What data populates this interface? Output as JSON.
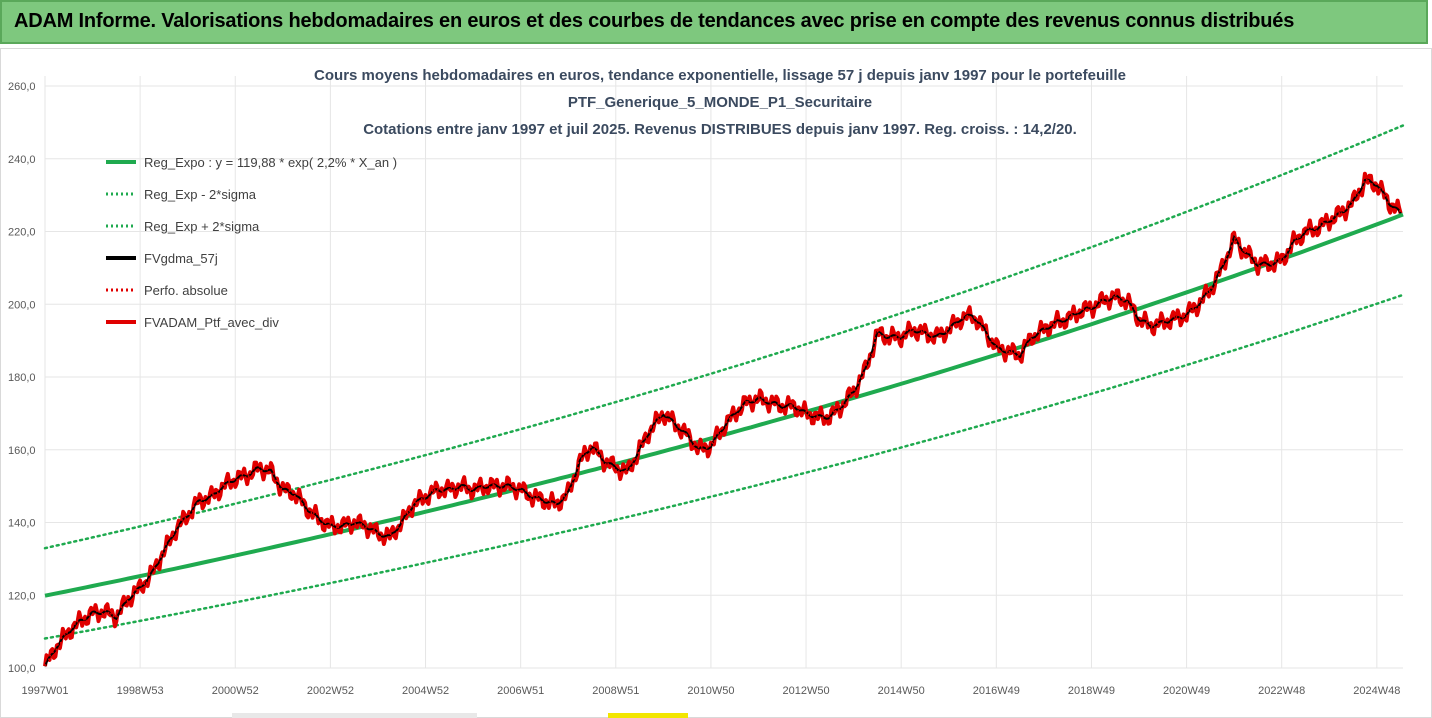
{
  "header": {
    "title": "ADAM Informe. Valorisations hebdomadaires en euros et des courbes de tendances avec prise en compte des revenus connus distribués"
  },
  "colors": {
    "header_bg": "#7ec87e",
    "trend": "#1faa4f",
    "sigma": "#1faa4f",
    "smoothed": "#000000",
    "perfo": "#e00000",
    "portfolio": "#e00000",
    "grid": "#e6e6e6"
  },
  "chart_data": {
    "type": "line",
    "title_lines": [
      "Cours moyens hebdomadaires en euros, tendance exponentielle, lissage 57 j depuis janv 1997 pour le portefeuille",
      "PTF_Generique_5_MONDE_P1_Securitaire",
      "Cotations entre janv 1997 et juil 2025. Revenus DISTRIBUES depuis janv 1997. Reg. croiss. : 14,2/20."
    ],
    "xlabel": "",
    "ylabel": "",
    "ylim": [
      100,
      260
    ],
    "xlim": [
      1997.0,
      2025.55
    ],
    "yticks": [
      100,
      120,
      140,
      160,
      180,
      200,
      220,
      240,
      260
    ],
    "ytick_labels": [
      "100,0",
      "120,0",
      "140,0",
      "160,0",
      "180,0",
      "200,0",
      "220,0",
      "240,0",
      "260,0"
    ],
    "xtick_labels": [
      "1997W01",
      "1998W53",
      "2000W52",
      "2002W52",
      "2004W52",
      "2006W51",
      "2008W51",
      "2010W50",
      "2012W50",
      "2014W50",
      "2016W49",
      "2018W49",
      "2020W49",
      "2022W48",
      "2024W48"
    ],
    "xtick_positions": [
      1997.0,
      1999.0,
      2001.0,
      2003.0,
      2005.0,
      2007.0,
      2009.0,
      2011.0,
      2013.0,
      2015.0,
      2017.0,
      2019.0,
      2021.0,
      2023.0,
      2025.0
    ],
    "grid": true,
    "legend_position": "top-left",
    "trend_model": {
      "a": 119.88,
      "rate": 0.022,
      "sigma_factor": 1.109
    },
    "series": [
      {
        "name": "Reg_Expo : y = 119,88 * exp( 2,2% *  X_an )",
        "style": "solid",
        "color": "#1faa4f",
        "kind": "trend"
      },
      {
        "name": "Reg_Exp - 2*sigma",
        "style": "dotted",
        "color": "#1faa4f",
        "kind": "lower"
      },
      {
        "name": "Reg_Exp + 2*sigma",
        "style": "dotted",
        "color": "#1faa4f",
        "kind": "upper"
      },
      {
        "name": "FVgdma_57j",
        "style": "solid",
        "color": "#000000",
        "kind": "smoothed"
      },
      {
        "name": "Perfo. absolue",
        "style": "dotted",
        "color": "#e00000",
        "kind": "perfo"
      },
      {
        "name": "FVADAM_Ptf_avec_div",
        "style": "solid",
        "color": "#e00000",
        "kind": "portfolio"
      }
    ],
    "x": [
      1997.0,
      1997.25,
      1997.5,
      1997.75,
      1998.0,
      1998.25,
      1998.5,
      1998.75,
      1999.0,
      1999.25,
      1999.5,
      1999.75,
      2000.0,
      2000.25,
      2000.5,
      2000.75,
      2001.0,
      2001.25,
      2001.5,
      2001.75,
      2002.0,
      2002.25,
      2002.5,
      2002.75,
      2003.0,
      2003.25,
      2003.5,
      2003.75,
      2004.0,
      2004.25,
      2004.5,
      2004.75,
      2005.0,
      2005.25,
      2005.5,
      2005.75,
      2006.0,
      2006.25,
      2006.5,
      2006.75,
      2007.0,
      2007.25,
      2007.5,
      2007.75,
      2008.0,
      2008.25,
      2008.5,
      2008.75,
      2009.0,
      2009.25,
      2009.5,
      2009.75,
      2010.0,
      2010.25,
      2010.5,
      2010.75,
      2011.0,
      2011.25,
      2011.5,
      2011.75,
      2012.0,
      2012.25,
      2012.5,
      2012.75,
      2013.0,
      2013.25,
      2013.5,
      2013.75,
      2014.0,
      2014.25,
      2014.5,
      2014.75,
      2015.0,
      2015.25,
      2015.5,
      2015.75,
      2016.0,
      2016.25,
      2016.5,
      2016.75,
      2017.0,
      2017.25,
      2017.5,
      2017.75,
      2018.0,
      2018.25,
      2018.5,
      2018.75,
      2019.0,
      2019.25,
      2019.5,
      2019.75,
      2020.0,
      2020.25,
      2020.5,
      2020.75,
      2021.0,
      2021.25,
      2021.5,
      2021.75,
      2022.0,
      2022.25,
      2022.5,
      2022.75,
      2023.0,
      2023.25,
      2023.5,
      2023.75,
      2024.0,
      2024.25,
      2024.5,
      2024.75,
      2025.0,
      2025.25,
      2025.5
    ],
    "portfolio_values": [
      100.5,
      106,
      110,
      113,
      115,
      115.5,
      114,
      119,
      122,
      126,
      132,
      138,
      142,
      146,
      147,
      150,
      152,
      153,
      155,
      154,
      149,
      148,
      144,
      141,
      139,
      139,
      140,
      139,
      137,
      136,
      140,
      145,
      147,
      149,
      149,
      150,
      149,
      150,
      150,
      150,
      149,
      147,
      146,
      145,
      148,
      157,
      161,
      157,
      155,
      154,
      160,
      166,
      170,
      167,
      164,
      160,
      161,
      166,
      170,
      173,
      174,
      173,
      172,
      172,
      170,
      169,
      169,
      172,
      176,
      182,
      192,
      191,
      191,
      193,
      192,
      191,
      193,
      196,
      197,
      193,
      188,
      187,
      186,
      191,
      193,
      195,
      196,
      198,
      199,
      201,
      202,
      201,
      196,
      194,
      195,
      196,
      197,
      200,
      204,
      210,
      218,
      214,
      211,
      211,
      212,
      217,
      220,
      221,
      223,
      225,
      228,
      234,
      233,
      228,
      225
    ]
  }
}
